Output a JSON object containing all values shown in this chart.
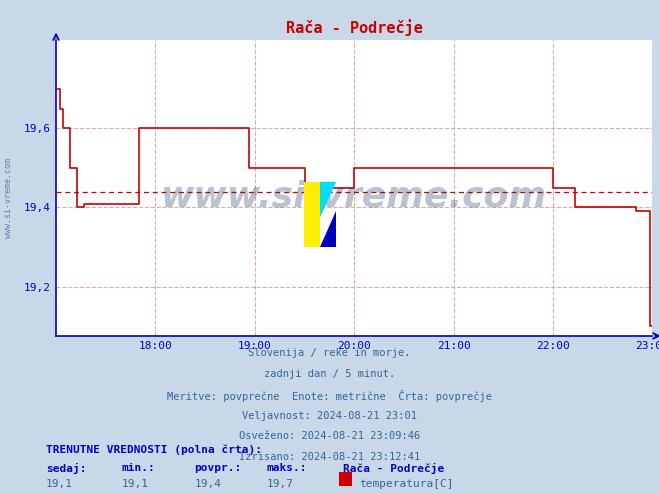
{
  "title": "Rača - Podrečje",
  "bg_color": "#c8d8e8",
  "plot_bg_color": "#ffffff",
  "line_color": "#cc0000",
  "avg_line_color": "#cc0000",
  "grid_color": "#ddaaaa",
  "axis_color": "#0000cc",
  "text_color": "#336699",
  "title_color": "#cc0000",
  "ylim": [
    19.075,
    19.825
  ],
  "xlim": [
    0,
    432
  ],
  "xtick_positions": [
    72,
    144,
    216,
    288,
    360,
    432
  ],
  "xtick_labels": [
    "18:00",
    "19:00",
    "20:00",
    "21:00",
    "22:00",
    "23:00"
  ],
  "ytick_positions": [
    19.2,
    19.4,
    19.6
  ],
  "ytick_labels": [
    "19,2",
    "19,4",
    "19,6"
  ],
  "avg_value": 19.44,
  "watermark": "www.si-vreme.com",
  "info_lines": [
    "Slovenija / reke in morje.",
    "zadnji dan / 5 minut.",
    "Meritve: povprečne  Enote: metrične  Črta: povprečje",
    "Veljavnost: 2024-08-21 23:01",
    "Osveženo: 2024-08-21 23:09:46",
    "Izrisano: 2024-08-21 23:12:41"
  ],
  "bottom_bold_label": "TRENUTNE VREDNOSTI (polna črta):",
  "bottom_headers": [
    "sedaj:",
    "min.:",
    "povpr.:",
    "maks.:"
  ],
  "bottom_values": [
    "19,1",
    "19,1",
    "19,4",
    "19,7"
  ],
  "bottom_series_name": "Rača - Podrečje",
  "bottom_series_label": "temperatura[C]",
  "bottom_series_color": "#cc0000",
  "time_data": [
    0,
    3,
    5,
    10,
    15,
    20,
    25,
    30,
    35,
    40,
    45,
    50,
    55,
    60,
    65,
    70,
    75,
    80,
    85,
    90,
    95,
    100,
    105,
    110,
    115,
    120,
    125,
    130,
    135,
    140,
    145,
    150,
    155,
    160,
    165,
    170,
    175,
    180,
    185,
    190,
    195,
    200,
    205,
    210,
    215,
    216,
    220,
    225,
    230,
    235,
    240,
    245,
    250,
    255,
    260,
    265,
    270,
    275,
    280,
    285,
    290,
    295,
    300,
    305,
    310,
    315,
    320,
    325,
    330,
    335,
    340,
    345,
    350,
    355,
    360,
    365,
    370,
    375,
    376,
    380,
    385,
    390,
    395,
    400,
    405,
    410,
    415,
    420,
    425,
    428,
    430,
    432
  ],
  "temp_data": [
    19.7,
    19.65,
    19.6,
    19.5,
    19.4,
    19.41,
    19.41,
    19.41,
    19.41,
    19.41,
    19.41,
    19.41,
    19.41,
    19.6,
    19.6,
    19.6,
    19.6,
    19.6,
    19.6,
    19.6,
    19.6,
    19.6,
    19.6,
    19.6,
    19.6,
    19.6,
    19.6,
    19.6,
    19.6,
    19.5,
    19.5,
    19.5,
    19.5,
    19.5,
    19.5,
    19.5,
    19.5,
    19.45,
    19.45,
    19.45,
    19.45,
    19.45,
    19.45,
    19.45,
    19.45,
    19.5,
    19.5,
    19.5,
    19.5,
    19.5,
    19.5,
    19.5,
    19.5,
    19.5,
    19.5,
    19.5,
    19.5,
    19.5,
    19.5,
    19.5,
    19.5,
    19.5,
    19.5,
    19.5,
    19.5,
    19.5,
    19.5,
    19.5,
    19.5,
    19.5,
    19.5,
    19.5,
    19.5,
    19.5,
    19.45,
    19.45,
    19.45,
    19.45,
    19.4,
    19.4,
    19.4,
    19.4,
    19.4,
    19.4,
    19.4,
    19.4,
    19.4,
    19.39,
    19.39,
    19.39,
    19.1,
    19.1
  ]
}
